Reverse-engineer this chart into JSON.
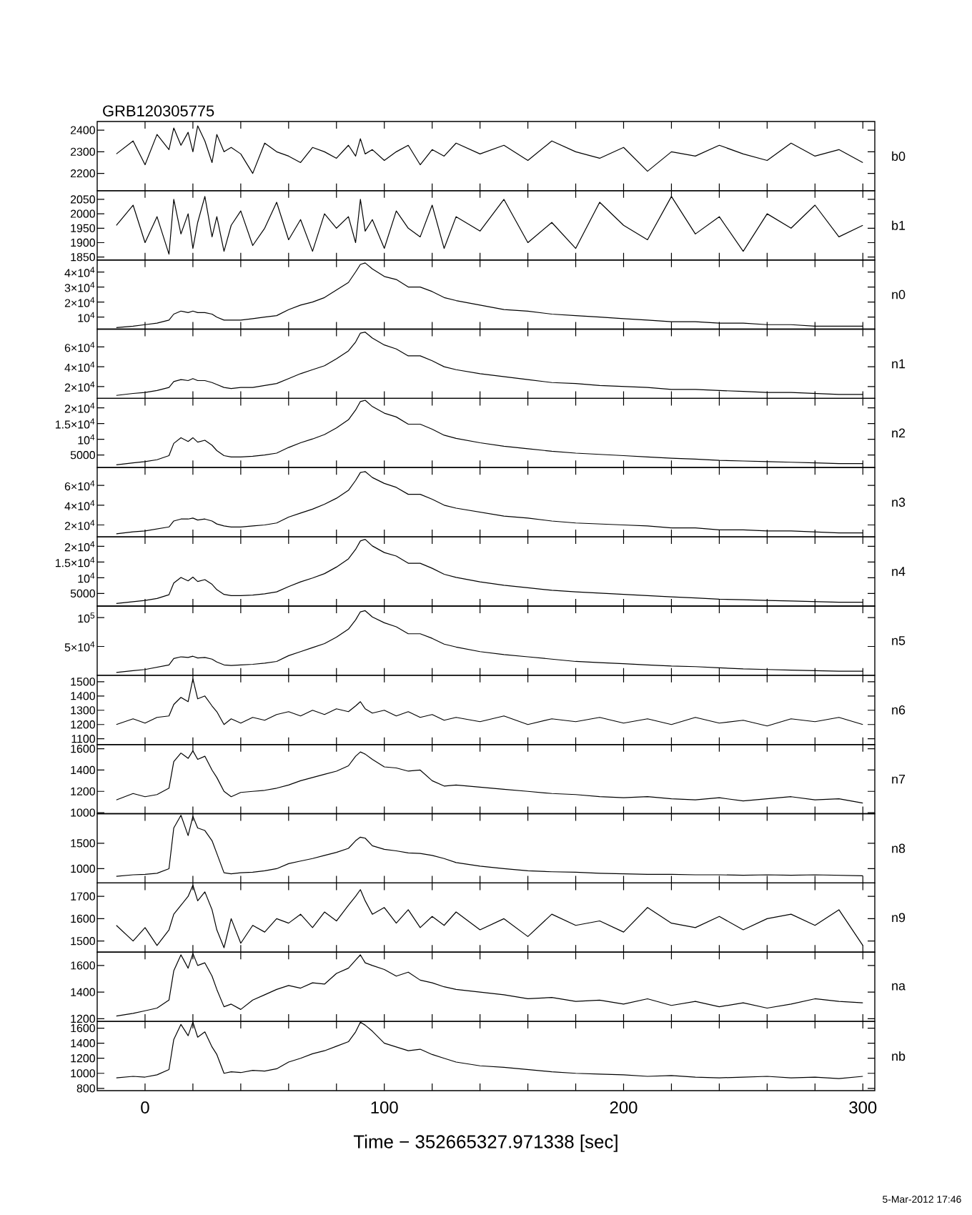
{
  "chart_data": [
    {
      "type": "line",
      "title": "GRB120305775",
      "annotations": [
        "b0"
      ],
      "tick_labels": "y",
      "color": "#000000",
      "x": [
        -12,
        -5,
        0,
        5,
        10,
        12,
        15,
        18,
        20,
        22,
        25,
        28,
        30,
        33,
        36,
        40,
        45,
        50,
        55,
        60,
        65,
        70,
        75,
        80,
        85,
        88,
        90,
        92,
        95,
        100,
        105,
        110,
        115,
        120,
        125,
        130,
        140,
        150,
        160,
        170,
        180,
        190,
        200,
        210,
        220,
        230,
        240,
        250,
        260,
        270,
        280,
        290,
        300
      ],
      "values": [
        2290,
        2350,
        2240,
        2380,
        2310,
        2410,
        2330,
        2390,
        2300,
        2420,
        2350,
        2250,
        2380,
        2300,
        2320,
        2290,
        2200,
        2340,
        2300,
        2280,
        2250,
        2320,
        2300,
        2270,
        2330,
        2280,
        2360,
        2290,
        2310,
        2260,
        2300,
        2330,
        2240,
        2310,
        2280,
        2340,
        2290,
        2330,
        2260,
        2350,
        2300,
        2270,
        2320,
        2210,
        2300,
        2280,
        2330,
        2290,
        2260,
        2340,
        2280,
        2310,
        2250
      ],
      "xlim": [
        -20,
        305
      ],
      "xticks": [
        0,
        {
          "value": 20,
          "label": null
        },
        {
          "value": 40,
          "label": null
        },
        {
          "value": 60,
          "label": null
        },
        {
          "value": 80,
          "label": null
        },
        100,
        {
          "value": 120,
          "label": null
        },
        {
          "value": 140,
          "label": null
        },
        {
          "value": 160,
          "label": null
        },
        {
          "value": 180,
          "label": null
        },
        200,
        {
          "value": 220,
          "label": null
        },
        {
          "value": 240,
          "label": null
        },
        {
          "value": 260,
          "label": null
        },
        {
          "value": 280,
          "label": null
        },
        300
      ],
      "ylim": [
        2120,
        2440
      ],
      "yticks": [
        2200,
        2300,
        2400
      ]
    },
    {
      "type": "line",
      "annotations": [
        "b1"
      ],
      "tick_labels": "y",
      "color": "#000000",
      "x": [
        -12,
        -5,
        0,
        5,
        10,
        12,
        15,
        18,
        20,
        22,
        25,
        28,
        30,
        33,
        36,
        40,
        45,
        50,
        55,
        60,
        65,
        70,
        75,
        80,
        85,
        88,
        90,
        92,
        95,
        100,
        105,
        110,
        115,
        120,
        125,
        130,
        140,
        150,
        160,
        170,
        180,
        190,
        200,
        210,
        220,
        230,
        240,
        250,
        260,
        270,
        280,
        290,
        300
      ],
      "values": [
        1960,
        2030,
        1900,
        1990,
        1860,
        2050,
        1930,
        2000,
        1880,
        1970,
        2060,
        1920,
        1990,
        1870,
        1960,
        2010,
        1890,
        1950,
        2040,
        1910,
        1980,
        1870,
        2000,
        1950,
        1990,
        1900,
        2050,
        1940,
        1980,
        1880,
        2010,
        1950,
        1920,
        2030,
        1880,
        1990,
        1940,
        2050,
        1900,
        1970,
        1880,
        2040,
        1960,
        1910,
        2060,
        1930,
        1990,
        1870,
        2000,
        1950,
        2030,
        1920,
        1960
      ],
      "xlim": [
        -20,
        305
      ],
      "xticks": [
        0,
        {
          "value": 20,
          "label": null
        },
        {
          "value": 40,
          "label": null
        },
        {
          "value": 60,
          "label": null
        },
        {
          "value": 80,
          "label": null
        },
        100,
        {
          "value": 120,
          "label": null
        },
        {
          "value": 140,
          "label": null
        },
        {
          "value": 160,
          "label": null
        },
        {
          "value": 180,
          "label": null
        },
        200,
        {
          "value": 220,
          "label": null
        },
        {
          "value": 240,
          "label": null
        },
        {
          "value": 260,
          "label": null
        },
        {
          "value": 280,
          "label": null
        },
        300
      ],
      "ylim": [
        1840,
        2080
      ],
      "yticks": [
        1850,
        1900,
        1950,
        2000,
        2050
      ]
    },
    {
      "type": "line",
      "annotations": [
        "n0"
      ],
      "tick_labels": "y",
      "color": "#000000",
      "x": [
        -12,
        -5,
        0,
        5,
        10,
        12,
        15,
        18,
        20,
        22,
        25,
        28,
        30,
        33,
        36,
        40,
        45,
        50,
        55,
        60,
        65,
        70,
        75,
        80,
        85,
        88,
        90,
        92,
        95,
        100,
        105,
        110,
        115,
        120,
        125,
        130,
        140,
        150,
        160,
        170,
        180,
        190,
        200,
        210,
        220,
        230,
        240,
        250,
        260,
        270,
        280,
        290,
        300
      ],
      "values": [
        3000,
        4000,
        5000,
        6000,
        8000,
        12000,
        14000,
        13000,
        14000,
        13000,
        13000,
        12000,
        10000,
        8000,
        8000,
        8000,
        9000,
        10000,
        11000,
        15000,
        18000,
        20000,
        23000,
        28000,
        33000,
        40000,
        45000,
        46000,
        42000,
        37000,
        35000,
        30000,
        30000,
        27000,
        23000,
        21000,
        18000,
        15000,
        14000,
        12000,
        11000,
        10000,
        9000,
        8000,
        7000,
        7000,
        6000,
        6000,
        5000,
        5000,
        4000,
        4000,
        4000
      ],
      "xlim": [
        -20,
        305
      ],
      "xticks": [
        0,
        {
          "value": 20,
          "label": null
        },
        {
          "value": 40,
          "label": null
        },
        {
          "value": 60,
          "label": null
        },
        {
          "value": 80,
          "label": null
        },
        100,
        {
          "value": 120,
          "label": null
        },
        {
          "value": 140,
          "label": null
        },
        {
          "value": 160,
          "label": null
        },
        {
          "value": 180,
          "label": null
        },
        200,
        {
          "value": 220,
          "label": null
        },
        {
          "value": 240,
          "label": null
        },
        {
          "value": 260,
          "label": null
        },
        {
          "value": 280,
          "label": null
        },
        300
      ],
      "ylim": [
        2000,
        48000
      ],
      "yticks": [
        {
          "value": 10000,
          "label": "10$^{4}$"
        },
        {
          "value": 20000,
          "label": "2×10$^{4}$"
        },
        {
          "value": 30000,
          "label": "3×10$^{4}$"
        },
        {
          "value": 40000,
          "label": "4×10$^{4}$"
        }
      ]
    },
    {
      "type": "line",
      "annotations": [
        "n1"
      ],
      "tick_labels": "y",
      "color": "#000000",
      "x": [
        -12,
        -5,
        0,
        5,
        10,
        12,
        15,
        18,
        20,
        22,
        25,
        28,
        30,
        33,
        36,
        40,
        45,
        50,
        55,
        60,
        65,
        70,
        75,
        80,
        85,
        88,
        90,
        92,
        95,
        100,
        105,
        110,
        115,
        120,
        125,
        130,
        140,
        150,
        160,
        170,
        180,
        190,
        200,
        210,
        220,
        230,
        240,
        250,
        260,
        270,
        280,
        290,
        300
      ],
      "values": [
        11000,
        13000,
        14000,
        16000,
        19000,
        25000,
        27000,
        26000,
        28000,
        26000,
        26000,
        24000,
        22000,
        19000,
        18000,
        19000,
        19000,
        21000,
        23000,
        28000,
        33000,
        37000,
        41000,
        48000,
        56000,
        65000,
        74000,
        75000,
        69000,
        62000,
        58000,
        51000,
        51000,
        46000,
        40000,
        37000,
        33000,
        30000,
        27000,
        24000,
        23000,
        21000,
        20000,
        19000,
        17000,
        17000,
        16000,
        15000,
        14000,
        14000,
        13000,
        12000,
        12000
      ],
      "xlim": [
        -20,
        305
      ],
      "xticks": [
        0,
        {
          "value": 20,
          "label": null
        },
        {
          "value": 40,
          "label": null
        },
        {
          "value": 60,
          "label": null
        },
        {
          "value": 80,
          "label": null
        },
        100,
        {
          "value": 120,
          "label": null
        },
        {
          "value": 140,
          "label": null
        },
        {
          "value": 160,
          "label": null
        },
        {
          "value": 180,
          "label": null
        },
        200,
        {
          "value": 220,
          "label": null
        },
        {
          "value": 240,
          "label": null
        },
        {
          "value": 260,
          "label": null
        },
        {
          "value": 280,
          "label": null
        },
        300
      ],
      "ylim": [
        8000,
        78000
      ],
      "yticks": [
        {
          "value": 20000,
          "label": "2×10$^{4}$"
        },
        {
          "value": 40000,
          "label": "4×10$^{4}$"
        },
        {
          "value": 60000,
          "label": "6×10$^{4}$"
        }
      ]
    },
    {
      "type": "line",
      "annotations": [
        "n2"
      ],
      "tick_labels": "y",
      "color": "#000000",
      "x": [
        -12,
        -5,
        0,
        5,
        10,
        12,
        15,
        18,
        20,
        22,
        25,
        28,
        30,
        33,
        36,
        40,
        45,
        50,
        55,
        60,
        65,
        70,
        75,
        80,
        85,
        88,
        90,
        92,
        95,
        100,
        105,
        110,
        115,
        120,
        125,
        130,
        140,
        150,
        160,
        170,
        180,
        190,
        200,
        210,
        220,
        230,
        240,
        250,
        260,
        270,
        280,
        290,
        300
      ],
      "values": [
        1900,
        2500,
        2900,
        3500,
        4800,
        8700,
        10500,
        9300,
        10500,
        9100,
        9700,
        8100,
        6400,
        4800,
        4400,
        4400,
        4600,
        5000,
        5600,
        7400,
        8900,
        10100,
        11500,
        13600,
        16200,
        19300,
        22000,
        22400,
        20400,
        18300,
        17100,
        14800,
        14800,
        13200,
        11300,
        10300,
        8900,
        7800,
        7000,
        6200,
        5600,
        5200,
        4800,
        4400,
        4000,
        3700,
        3300,
        3100,
        2900,
        2700,
        2500,
        2300,
        2300
      ],
      "xlim": [
        -20,
        305
      ],
      "xticks": [
        0,
        {
          "value": 20,
          "label": null
        },
        {
          "value": 40,
          "label": null
        },
        {
          "value": 60,
          "label": null
        },
        {
          "value": 80,
          "label": null
        },
        100,
        {
          "value": 120,
          "label": null
        },
        {
          "value": 140,
          "label": null
        },
        {
          "value": 160,
          "label": null
        },
        {
          "value": 180,
          "label": null
        },
        200,
        {
          "value": 220,
          "label": null
        },
        {
          "value": 240,
          "label": null
        },
        {
          "value": 260,
          "label": null
        },
        {
          "value": 280,
          "label": null
        },
        300
      ],
      "ylim": [
        1000,
        23000
      ],
      "yticks": [
        5000,
        {
          "value": 10000,
          "label": "10$^{4}$"
        },
        {
          "value": 15000,
          "label": "1.5×10$^{4}$"
        },
        {
          "value": 20000,
          "label": "2×10$^{4}$"
        }
      ]
    },
    {
      "type": "line",
      "annotations": [
        "n3"
      ],
      "tick_labels": "y",
      "color": "#000000",
      "x": [
        -12,
        -5,
        0,
        5,
        10,
        12,
        15,
        18,
        20,
        22,
        25,
        28,
        30,
        33,
        36,
        40,
        45,
        50,
        55,
        60,
        65,
        70,
        75,
        80,
        85,
        88,
        90,
        92,
        95,
        100,
        105,
        110,
        115,
        120,
        125,
        130,
        140,
        150,
        160,
        170,
        180,
        190,
        200,
        210,
        220,
        230,
        240,
        250,
        260,
        270,
        280,
        290,
        300
      ],
      "values": [
        11000,
        13000,
        14000,
        16000,
        18000,
        24000,
        26000,
        26000,
        27000,
        25000,
        26000,
        24000,
        21000,
        19000,
        18000,
        18000,
        19000,
        20000,
        22000,
        28000,
        32000,
        36000,
        41000,
        47000,
        55000,
        65000,
        73000,
        74000,
        68000,
        62000,
        58000,
        51000,
        51000,
        46000,
        40000,
        37000,
        33000,
        29000,
        27000,
        24000,
        22000,
        21000,
        20000,
        19000,
        17000,
        17000,
        15000,
        15000,
        14000,
        14000,
        13000,
        12000,
        12000
      ],
      "xlim": [
        -20,
        305
      ],
      "xticks": [
        0,
        {
          "value": 20,
          "label": null
        },
        {
          "value": 40,
          "label": null
        },
        {
          "value": 60,
          "label": null
        },
        {
          "value": 80,
          "label": null
        },
        100,
        {
          "value": 120,
          "label": null
        },
        {
          "value": 140,
          "label": null
        },
        {
          "value": 160,
          "label": null
        },
        {
          "value": 180,
          "label": null
        },
        200,
        {
          "value": 220,
          "label": null
        },
        {
          "value": 240,
          "label": null
        },
        {
          "value": 260,
          "label": null
        },
        {
          "value": 280,
          "label": null
        },
        300
      ],
      "ylim": [
        8000,
        78000
      ],
      "yticks": [
        {
          "value": 20000,
          "label": "2×10$^{4}$"
        },
        {
          "value": 40000,
          "label": "4×10$^{4}$"
        },
        {
          "value": 60000,
          "label": "6×10$^{4}$"
        }
      ]
    },
    {
      "type": "line",
      "annotations": [
        "n4"
      ],
      "tick_labels": "y",
      "color": "#000000",
      "x": [
        -12,
        -5,
        0,
        5,
        10,
        12,
        15,
        18,
        20,
        22,
        25,
        28,
        30,
        33,
        36,
        40,
        45,
        50,
        55,
        60,
        65,
        70,
        75,
        80,
        85,
        88,
        90,
        92,
        95,
        100,
        105,
        110,
        115,
        120,
        125,
        130,
        140,
        150,
        160,
        170,
        180,
        190,
        200,
        210,
        220,
        230,
        240,
        250,
        260,
        270,
        280,
        290,
        300
      ],
      "values": [
        1800,
        2400,
        2800,
        3400,
        4600,
        8300,
        10100,
        9000,
        10200,
        8800,
        9400,
        7900,
        6200,
        4700,
        4300,
        4300,
        4500,
        4900,
        5500,
        7200,
        8700,
        9900,
        11300,
        13400,
        16000,
        19000,
        21700,
        22200,
        20100,
        18000,
        16900,
        14600,
        14600,
        13000,
        11100,
        10100,
        8700,
        7600,
        6800,
        6000,
        5500,
        5100,
        4700,
        4300,
        3900,
        3600,
        3200,
        3000,
        2800,
        2600,
        2400,
        2200,
        2200
      ],
      "xlim": [
        -20,
        305
      ],
      "xticks": [
        0,
        {
          "value": 20,
          "label": null
        },
        {
          "value": 40,
          "label": null
        },
        {
          "value": 60,
          "label": null
        },
        {
          "value": 80,
          "label": null
        },
        100,
        {
          "value": 120,
          "label": null
        },
        {
          "value": 140,
          "label": null
        },
        {
          "value": 160,
          "label": null
        },
        {
          "value": 180,
          "label": null
        },
        200,
        {
          "value": 220,
          "label": null
        },
        {
          "value": 240,
          "label": null
        },
        {
          "value": 260,
          "label": null
        },
        {
          "value": 280,
          "label": null
        },
        300
      ],
      "ylim": [
        1000,
        23000
      ],
      "yticks": [
        5000,
        {
          "value": 10000,
          "label": "10$^{4}$"
        },
        {
          "value": 15000,
          "label": "1.5×10$^{4}$"
        },
        {
          "value": 20000,
          "label": "2×10$^{4}$"
        }
      ]
    },
    {
      "type": "line",
      "annotations": [
        "n5"
      ],
      "tick_labels": "y",
      "color": "#000000",
      "x": [
        -12,
        -5,
        0,
        5,
        10,
        12,
        15,
        18,
        20,
        22,
        25,
        28,
        30,
        33,
        36,
        40,
        45,
        50,
        55,
        60,
        65,
        70,
        75,
        80,
        85,
        88,
        90,
        92,
        95,
        100,
        105,
        110,
        115,
        120,
        125,
        130,
        140,
        150,
        160,
        170,
        180,
        190,
        200,
        210,
        220,
        230,
        240,
        250,
        260,
        270,
        280,
        290,
        300
      ],
      "values": [
        5000,
        8000,
        10000,
        14000,
        18000,
        29000,
        32000,
        31000,
        33000,
        30000,
        31000,
        28000,
        23000,
        18000,
        17000,
        18000,
        19000,
        21000,
        24000,
        34000,
        41000,
        48000,
        55000,
        66000,
        80000,
        96000,
        110000,
        112000,
        101000,
        91000,
        84000,
        72000,
        72000,
        64000,
        54000,
        49000,
        41000,
        36000,
        32000,
        28000,
        24000,
        22000,
        20000,
        18000,
        16000,
        15000,
        13000,
        11000,
        10000,
        9000,
        8000,
        7000,
        7000
      ],
      "xlim": [
        -20,
        305
      ],
      "xticks": [
        0,
        {
          "value": 20,
          "label": null
        },
        {
          "value": 40,
          "label": null
        },
        {
          "value": 60,
          "label": null
        },
        {
          "value": 80,
          "label": null
        },
        100,
        {
          "value": 120,
          "label": null
        },
        {
          "value": 140,
          "label": null
        },
        {
          "value": 160,
          "label": null
        },
        {
          "value": 180,
          "label": null
        },
        200,
        {
          "value": 220,
          "label": null
        },
        {
          "value": 240,
          "label": null
        },
        {
          "value": 260,
          "label": null
        },
        {
          "value": 280,
          "label": null
        },
        300
      ],
      "ylim": [
        0,
        120000
      ],
      "yticks": [
        {
          "value": 50000,
          "label": "5×10$^{4}$"
        },
        {
          "value": 100000,
          "label": "10$^{5}$"
        }
      ]
    },
    {
      "type": "line",
      "annotations": [
        "n6"
      ],
      "tick_labels": "y",
      "color": "#000000",
      "x": [
        -12,
        -5,
        0,
        5,
        10,
        12,
        15,
        18,
        20,
        22,
        25,
        28,
        30,
        33,
        36,
        40,
        45,
        50,
        55,
        60,
        65,
        70,
        75,
        80,
        85,
        88,
        90,
        92,
        95,
        100,
        105,
        110,
        115,
        120,
        125,
        130,
        140,
        150,
        160,
        170,
        180,
        190,
        200,
        210,
        220,
        230,
        240,
        250,
        260,
        270,
        280,
        290,
        300
      ],
      "values": [
        1200,
        1240,
        1210,
        1250,
        1260,
        1340,
        1390,
        1360,
        1520,
        1380,
        1400,
        1330,
        1290,
        1200,
        1240,
        1210,
        1250,
        1230,
        1270,
        1290,
        1260,
        1300,
        1270,
        1310,
        1290,
        1330,
        1360,
        1310,
        1280,
        1300,
        1260,
        1290,
        1250,
        1270,
        1230,
        1250,
        1220,
        1260,
        1200,
        1240,
        1220,
        1250,
        1210,
        1240,
        1200,
        1250,
        1210,
        1230,
        1190,
        1240,
        1220,
        1250,
        1200
      ],
      "xlim": [
        -20,
        305
      ],
      "xticks": [
        0,
        {
          "value": 20,
          "label": null
        },
        {
          "value": 40,
          "label": null
        },
        {
          "value": 60,
          "label": null
        },
        {
          "value": 80,
          "label": null
        },
        100,
        {
          "value": 120,
          "label": null
        },
        {
          "value": 140,
          "label": null
        },
        {
          "value": 160,
          "label": null
        },
        {
          "value": 180,
          "label": null
        },
        200,
        {
          "value": 220,
          "label": null
        },
        {
          "value": 240,
          "label": null
        },
        {
          "value": 260,
          "label": null
        },
        {
          "value": 280,
          "label": null
        },
        300
      ],
      "ylim": [
        1060,
        1545
      ],
      "yticks": [
        1100,
        1200,
        1300,
        1400,
        1500
      ]
    },
    {
      "type": "line",
      "annotations": [
        "n7"
      ],
      "tick_labels": "y",
      "color": "#000000",
      "x": [
        -12,
        -5,
        0,
        5,
        10,
        12,
        15,
        18,
        20,
        22,
        25,
        28,
        30,
        33,
        36,
        40,
        45,
        50,
        55,
        60,
        65,
        70,
        75,
        80,
        85,
        88,
        90,
        92,
        95,
        100,
        105,
        110,
        115,
        120,
        125,
        130,
        140,
        150,
        160,
        170,
        180,
        190,
        200,
        210,
        220,
        230,
        240,
        250,
        260,
        270,
        280,
        290,
        300
      ],
      "values": [
        1120,
        1180,
        1150,
        1170,
        1230,
        1480,
        1560,
        1510,
        1580,
        1500,
        1530,
        1400,
        1330,
        1200,
        1150,
        1190,
        1200,
        1210,
        1230,
        1260,
        1300,
        1330,
        1360,
        1390,
        1440,
        1530,
        1570,
        1550,
        1500,
        1430,
        1420,
        1390,
        1400,
        1300,
        1250,
        1260,
        1240,
        1220,
        1200,
        1180,
        1170,
        1150,
        1140,
        1150,
        1130,
        1120,
        1140,
        1110,
        1130,
        1150,
        1120,
        1130,
        1090
      ],
      "xlim": [
        -20,
        305
      ],
      "xticks": [
        0,
        {
          "value": 20,
          "label": null
        },
        {
          "value": 40,
          "label": null
        },
        {
          "value": 60,
          "label": null
        },
        {
          "value": 80,
          "label": null
        },
        100,
        {
          "value": 120,
          "label": null
        },
        {
          "value": 140,
          "label": null
        },
        {
          "value": 160,
          "label": null
        },
        {
          "value": 180,
          "label": null
        },
        200,
        {
          "value": 220,
          "label": null
        },
        {
          "value": 240,
          "label": null
        },
        {
          "value": 260,
          "label": null
        },
        {
          "value": 280,
          "label": null
        },
        300
      ],
      "ylim": [
        990,
        1640
      ],
      "yticks": [
        1000,
        1200,
        1400,
        1600
      ]
    },
    {
      "type": "line",
      "annotations": [
        "n8"
      ],
      "tick_labels": "y",
      "color": "#000000",
      "x": [
        -12,
        -5,
        0,
        5,
        10,
        12,
        15,
        18,
        20,
        22,
        25,
        28,
        30,
        33,
        36,
        40,
        45,
        50,
        55,
        60,
        65,
        70,
        75,
        80,
        85,
        88,
        90,
        92,
        95,
        100,
        105,
        110,
        115,
        120,
        125,
        130,
        140,
        150,
        160,
        170,
        180,
        190,
        200,
        210,
        220,
        230,
        240,
        250,
        260,
        270,
        280,
        290,
        300
      ],
      "values": [
        850,
        880,
        890,
        910,
        1000,
        1800,
        2050,
        1650,
        2030,
        1800,
        1750,
        1550,
        1300,
        920,
        900,
        920,
        930,
        960,
        1000,
        1100,
        1150,
        1200,
        1260,
        1320,
        1400,
        1550,
        1620,
        1600,
        1450,
        1380,
        1350,
        1310,
        1300,
        1260,
        1200,
        1120,
        1050,
        1000,
        960,
        940,
        930,
        910,
        900,
        890,
        890,
        880,
        880,
        870,
        880,
        870,
        880,
        870,
        860
      ],
      "xlim": [
        -20,
        305
      ],
      "xticks": [
        0,
        {
          "value": 20,
          "label": null
        },
        {
          "value": 40,
          "label": null
        },
        {
          "value": 60,
          "label": null
        },
        {
          "value": 80,
          "label": null
        },
        100,
        {
          "value": 120,
          "label": null
        },
        {
          "value": 140,
          "label": null
        },
        {
          "value": 160,
          "label": null
        },
        {
          "value": 180,
          "label": null
        },
        200,
        {
          "value": 220,
          "label": null
        },
        {
          "value": 240,
          "label": null
        },
        {
          "value": 260,
          "label": null
        },
        {
          "value": 280,
          "label": null
        },
        300
      ],
      "ylim": [
        720,
        2080
      ],
      "yticks": [
        1000,
        1500
      ]
    },
    {
      "type": "line",
      "annotations": [
        "n9"
      ],
      "tick_labels": "y",
      "color": "#000000",
      "x": [
        -12,
        -5,
        0,
        5,
        10,
        12,
        15,
        18,
        20,
        22,
        25,
        28,
        30,
        33,
        36,
        40,
        45,
        50,
        55,
        60,
        65,
        70,
        75,
        80,
        85,
        88,
        90,
        92,
        95,
        100,
        105,
        110,
        115,
        120,
        125,
        130,
        140,
        150,
        160,
        170,
        180,
        190,
        200,
        210,
        220,
        230,
        240,
        250,
        260,
        270,
        280,
        290,
        300
      ],
      "values": [
        1570,
        1500,
        1560,
        1480,
        1550,
        1620,
        1660,
        1700,
        1750,
        1680,
        1720,
        1640,
        1550,
        1470,
        1600,
        1490,
        1570,
        1540,
        1600,
        1580,
        1620,
        1560,
        1630,
        1590,
        1660,
        1700,
        1730,
        1680,
        1620,
        1650,
        1580,
        1640,
        1560,
        1610,
        1570,
        1630,
        1550,
        1600,
        1520,
        1620,
        1570,
        1590,
        1540,
        1650,
        1580,
        1560,
        1610,
        1550,
        1600,
        1620,
        1570,
        1640,
        1480
      ],
      "xlim": [
        -20,
        305
      ],
      "xticks": [
        0,
        {
          "value": 20,
          "label": null
        },
        {
          "value": 40,
          "label": null
        },
        {
          "value": 60,
          "label": null
        },
        {
          "value": 80,
          "label": null
        },
        100,
        {
          "value": 120,
          "label": null
        },
        {
          "value": 140,
          "label": null
        },
        {
          "value": 160,
          "label": null
        },
        {
          "value": 180,
          "label": null
        },
        200,
        {
          "value": 220,
          "label": null
        },
        {
          "value": 240,
          "label": null
        },
        {
          "value": 260,
          "label": null
        },
        {
          "value": 280,
          "label": null
        },
        300
      ],
      "ylim": [
        1450,
        1760
      ],
      "yticks": [
        1500,
        1600,
        1700
      ]
    },
    {
      "type": "line",
      "annotations": [
        "na"
      ],
      "tick_labels": "y",
      "color": "#000000",
      "x": [
        -12,
        -5,
        0,
        5,
        10,
        12,
        15,
        18,
        20,
        22,
        25,
        28,
        30,
        33,
        36,
        40,
        45,
        50,
        55,
        60,
        65,
        70,
        75,
        80,
        85,
        88,
        90,
        92,
        95,
        100,
        105,
        110,
        115,
        120,
        125,
        130,
        140,
        150,
        160,
        170,
        180,
        190,
        200,
        210,
        220,
        230,
        240,
        250,
        260,
        270,
        280,
        290,
        300
      ],
      "values": [
        1220,
        1240,
        1260,
        1280,
        1340,
        1560,
        1680,
        1580,
        1690,
        1600,
        1620,
        1520,
        1420,
        1290,
        1310,
        1270,
        1340,
        1380,
        1420,
        1450,
        1430,
        1470,
        1460,
        1540,
        1580,
        1640,
        1680,
        1620,
        1600,
        1570,
        1520,
        1550,
        1490,
        1470,
        1440,
        1420,
        1400,
        1380,
        1350,
        1360,
        1330,
        1340,
        1310,
        1350,
        1300,
        1330,
        1290,
        1320,
        1280,
        1310,
        1350,
        1330,
        1320
      ],
      "xlim": [
        -20,
        305
      ],
      "xticks": [
        0,
        {
          "value": 20,
          "label": null
        },
        {
          "value": 40,
          "label": null
        },
        {
          "value": 60,
          "label": null
        },
        {
          "value": 80,
          "label": null
        },
        100,
        {
          "value": 120,
          "label": null
        },
        {
          "value": 140,
          "label": null
        },
        {
          "value": 160,
          "label": null
        },
        {
          "value": 180,
          "label": null
        },
        200,
        {
          "value": 220,
          "label": null
        },
        {
          "value": 240,
          "label": null
        },
        {
          "value": 260,
          "label": null
        },
        {
          "value": 280,
          "label": null
        },
        300
      ],
      "ylim": [
        1180,
        1700
      ],
      "yticks": [
        1200,
        1400,
        1600
      ]
    },
    {
      "type": "line",
      "annotations": [
        "nb",
        "5-Mar-2012 17:46"
      ],
      "xlabel": "Time − 352665327.971338 [sec]",
      "color": "#000000",
      "x": [
        -12,
        -5,
        0,
        5,
        10,
        12,
        15,
        18,
        20,
        22,
        25,
        28,
        30,
        33,
        36,
        40,
        45,
        50,
        55,
        60,
        65,
        70,
        75,
        80,
        85,
        88,
        90,
        92,
        95,
        100,
        105,
        110,
        115,
        120,
        125,
        130,
        140,
        150,
        160,
        170,
        180,
        190,
        200,
        210,
        220,
        230,
        240,
        250,
        260,
        270,
        280,
        290,
        300
      ],
      "values": [
        940,
        960,
        950,
        980,
        1050,
        1450,
        1650,
        1500,
        1680,
        1480,
        1550,
        1350,
        1250,
        1000,
        1020,
        1010,
        1040,
        1030,
        1060,
        1150,
        1200,
        1260,
        1300,
        1360,
        1420,
        1550,
        1680,
        1640,
        1560,
        1400,
        1350,
        1300,
        1320,
        1250,
        1200,
        1150,
        1100,
        1080,
        1050,
        1020,
        1000,
        990,
        980,
        960,
        970,
        950,
        940,
        950,
        960,
        940,
        950,
        930,
        960
      ],
      "xlim": [
        -20,
        305
      ],
      "xticks": [
        0,
        {
          "value": 20,
          "label": null
        },
        {
          "value": 40,
          "label": null
        },
        {
          "value": 60,
          "label": null
        },
        {
          "value": 80,
          "label": null
        },
        100,
        {
          "value": 120,
          "label": null
        },
        {
          "value": 140,
          "label": null
        },
        {
          "value": 160,
          "label": null
        },
        {
          "value": 180,
          "label": null
        },
        200,
        {
          "value": 220,
          "label": null
        },
        {
          "value": 240,
          "label": null
        },
        {
          "value": 260,
          "label": null
        },
        {
          "value": 280,
          "label": null
        },
        300
      ],
      "ylim": [
        770,
        1690
      ],
      "yticks": [
        800,
        1000,
        1200,
        1400,
        1600
      ]
    }
  ]
}
